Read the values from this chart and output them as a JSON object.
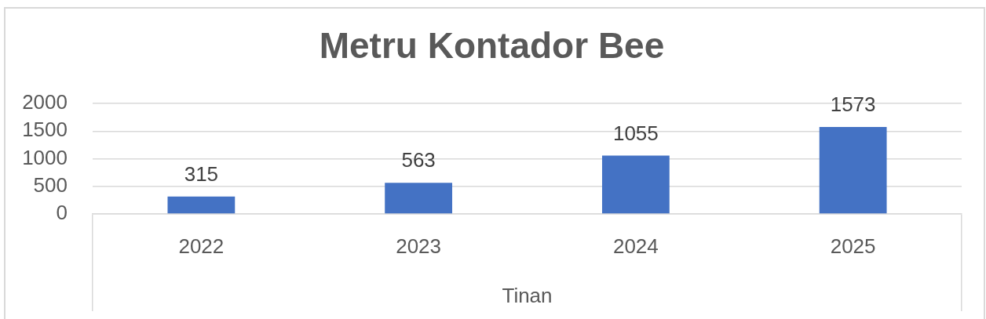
{
  "chart_data": {
    "type": "bar",
    "title": "Metru Kontador Bee",
    "xlabel": "Tinan",
    "categories": [
      "2022",
      "2023",
      "2024",
      "2025"
    ],
    "values": [
      315,
      563,
      1055,
      1573
    ],
    "color": "#4472c4",
    "ylim": [
      0,
      2000
    ],
    "yticks": [
      0,
      500,
      1000,
      1500,
      2000
    ],
    "grid": "y",
    "data_labels": true
  }
}
